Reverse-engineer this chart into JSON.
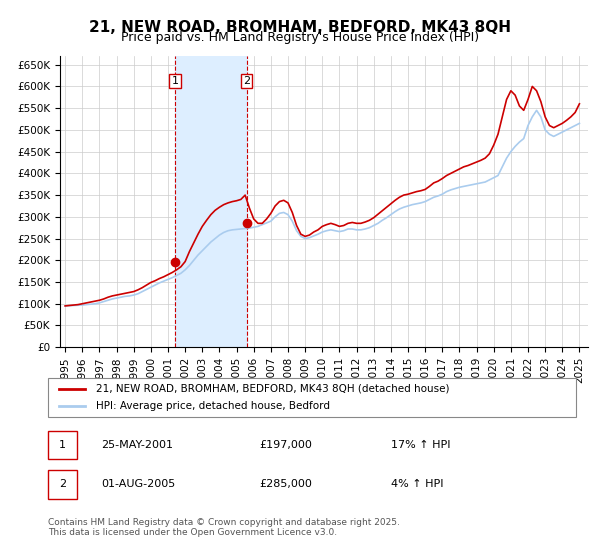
{
  "title": "21, NEW ROAD, BROMHAM, BEDFORD, MK43 8QH",
  "subtitle": "Price paid vs. HM Land Registry's House Price Index (HPI)",
  "title_fontsize": 11,
  "subtitle_fontsize": 9,
  "ylim": [
    0,
    670000
  ],
  "yticks": [
    0,
    50000,
    100000,
    150000,
    200000,
    250000,
    300000,
    350000,
    400000,
    450000,
    500000,
    550000,
    600000,
    650000
  ],
  "ytick_labels": [
    "£0",
    "£50K",
    "£100K",
    "£150K",
    "£200K",
    "£250K",
    "£300K",
    "£350K",
    "£400K",
    "£450K",
    "£500K",
    "£550K",
    "£600K",
    "£650K"
  ],
  "xlim_start": 1995.0,
  "xlim_end": 2025.5,
  "xtick_years": [
    1995,
    1996,
    1997,
    1998,
    1999,
    2000,
    2001,
    2002,
    2003,
    2004,
    2005,
    2006,
    2007,
    2008,
    2009,
    2010,
    2011,
    2012,
    2013,
    2014,
    2015,
    2016,
    2017,
    2018,
    2019,
    2020,
    2021,
    2022,
    2023,
    2024,
    2025
  ],
  "line1_color": "#cc0000",
  "line2_color": "#aaccee",
  "shade_color": "#ddeeff",
  "grid_color": "#cccccc",
  "background_color": "#ffffff",
  "marker1_x": 2001.4,
  "marker1_y": 197000,
  "marker2_x": 2005.58,
  "marker2_y": 285000,
  "vline1_x": 2001.4,
  "vline2_x": 2005.58,
  "shade_x1": 2001.4,
  "shade_x2": 2005.58,
  "legend_label1": "21, NEW ROAD, BROMHAM, BEDFORD, MK43 8QH (detached house)",
  "legend_label2": "HPI: Average price, detached house, Bedford",
  "table_rows": [
    {
      "num": "1",
      "date": "25-MAY-2001",
      "price": "£197,000",
      "hpi": "17% ↑ HPI"
    },
    {
      "num": "2",
      "date": "01-AUG-2005",
      "price": "£285,000",
      "hpi": "4% ↑ HPI"
    }
  ],
  "footer": "Contains HM Land Registry data © Crown copyright and database right 2025.\nThis data is licensed under the Open Government Licence v3.0.",
  "hpi_series": {
    "years": [
      1995.0,
      1995.25,
      1995.5,
      1995.75,
      1996.0,
      1996.25,
      1996.5,
      1996.75,
      1997.0,
      1997.25,
      1997.5,
      1997.75,
      1998.0,
      1998.25,
      1998.5,
      1998.75,
      1999.0,
      1999.25,
      1999.5,
      1999.75,
      2000.0,
      2000.25,
      2000.5,
      2000.75,
      2001.0,
      2001.25,
      2001.5,
      2001.75,
      2002.0,
      2002.25,
      2002.5,
      2002.75,
      2003.0,
      2003.25,
      2003.5,
      2003.75,
      2004.0,
      2004.25,
      2004.5,
      2004.75,
      2005.0,
      2005.25,
      2005.5,
      2005.75,
      2006.0,
      2006.25,
      2006.5,
      2006.75,
      2007.0,
      2007.25,
      2007.5,
      2007.75,
      2008.0,
      2008.25,
      2008.5,
      2008.75,
      2009.0,
      2009.25,
      2009.5,
      2009.75,
      2010.0,
      2010.25,
      2010.5,
      2010.75,
      2011.0,
      2011.25,
      2011.5,
      2011.75,
      2012.0,
      2012.25,
      2012.5,
      2012.75,
      2013.0,
      2013.25,
      2013.5,
      2013.75,
      2014.0,
      2014.25,
      2014.5,
      2014.75,
      2015.0,
      2015.25,
      2015.5,
      2015.75,
      2016.0,
      2016.25,
      2016.5,
      2016.75,
      2017.0,
      2017.25,
      2017.5,
      2017.75,
      2018.0,
      2018.25,
      2018.5,
      2018.75,
      2019.0,
      2019.25,
      2019.5,
      2019.75,
      2020.0,
      2020.25,
      2020.5,
      2020.75,
      2021.0,
      2021.25,
      2021.5,
      2021.75,
      2022.0,
      2022.25,
      2022.5,
      2022.75,
      2023.0,
      2023.25,
      2023.5,
      2023.75,
      2024.0,
      2024.25,
      2024.5,
      2024.75,
      2025.0
    ],
    "values": [
      95000,
      95500,
      96000,
      96500,
      97000,
      98000,
      99000,
      100000,
      102000,
      105000,
      108000,
      111000,
      113000,
      115000,
      117000,
      118000,
      120000,
      123000,
      128000,
      133000,
      138000,
      143000,
      148000,
      152000,
      156000,
      160000,
      165000,
      170000,
      178000,
      188000,
      200000,
      212000,
      222000,
      232000,
      242000,
      250000,
      258000,
      264000,
      268000,
      270000,
      271000,
      272000,
      273000,
      274000,
      276000,
      278000,
      282000,
      286000,
      290000,
      300000,
      308000,
      310000,
      305000,
      290000,
      268000,
      255000,
      250000,
      252000,
      256000,
      260000,
      265000,
      268000,
      270000,
      268000,
      266000,
      268000,
      272000,
      272000,
      270000,
      270000,
      272000,
      275000,
      280000,
      285000,
      292000,
      298000,
      305000,
      312000,
      318000,
      322000,
      325000,
      328000,
      330000,
      332000,
      335000,
      340000,
      345000,
      348000,
      352000,
      358000,
      362000,
      365000,
      368000,
      370000,
      372000,
      374000,
      376000,
      378000,
      380000,
      385000,
      390000,
      395000,
      415000,
      435000,
      450000,
      462000,
      472000,
      480000,
      510000,
      530000,
      545000,
      530000,
      500000,
      490000,
      485000,
      490000,
      495000,
      500000,
      505000,
      510000,
      515000
    ]
  },
  "price_series": {
    "years": [
      1995.0,
      1995.25,
      1995.5,
      1995.75,
      1996.0,
      1996.25,
      1996.5,
      1996.75,
      1997.0,
      1997.25,
      1997.5,
      1997.75,
      1998.0,
      1998.25,
      1998.5,
      1998.75,
      1999.0,
      1999.25,
      1999.5,
      1999.75,
      2000.0,
      2000.25,
      2000.5,
      2000.75,
      2001.0,
      2001.25,
      2001.5,
      2001.75,
      2002.0,
      2002.25,
      2002.5,
      2002.75,
      2003.0,
      2003.25,
      2003.5,
      2003.75,
      2004.0,
      2004.25,
      2004.5,
      2004.75,
      2005.0,
      2005.25,
      2005.5,
      2005.75,
      2006.0,
      2006.25,
      2006.5,
      2006.75,
      2007.0,
      2007.25,
      2007.5,
      2007.75,
      2008.0,
      2008.25,
      2008.5,
      2008.75,
      2009.0,
      2009.25,
      2009.5,
      2009.75,
      2010.0,
      2010.25,
      2010.5,
      2010.75,
      2011.0,
      2011.25,
      2011.5,
      2011.75,
      2012.0,
      2012.25,
      2012.5,
      2012.75,
      2013.0,
      2013.25,
      2013.5,
      2013.75,
      2014.0,
      2014.25,
      2014.5,
      2014.75,
      2015.0,
      2015.25,
      2015.5,
      2015.75,
      2016.0,
      2016.25,
      2016.5,
      2016.75,
      2017.0,
      2017.25,
      2017.5,
      2017.75,
      2018.0,
      2018.25,
      2018.5,
      2018.75,
      2019.0,
      2019.25,
      2019.5,
      2019.75,
      2020.0,
      2020.25,
      2020.5,
      2020.75,
      2021.0,
      2021.25,
      2021.5,
      2021.75,
      2022.0,
      2022.25,
      2022.5,
      2022.75,
      2023.0,
      2023.25,
      2023.5,
      2023.75,
      2024.0,
      2024.25,
      2024.5,
      2024.75,
      2025.0
    ],
    "values": [
      95000,
      96000,
      97000,
      98000,
      100000,
      102000,
      104000,
      106000,
      108000,
      111000,
      115000,
      118000,
      120000,
      122000,
      124000,
      126000,
      128000,
      132000,
      137000,
      143000,
      149000,
      153000,
      158000,
      162000,
      167000,
      172000,
      178000,
      185000,
      197000,
      220000,
      240000,
      260000,
      278000,
      292000,
      305000,
      315000,
      322000,
      328000,
      332000,
      335000,
      337000,
      340000,
      350000,
      320000,
      295000,
      285000,
      285000,
      295000,
      308000,
      325000,
      335000,
      338000,
      332000,
      310000,
      280000,
      260000,
      255000,
      258000,
      265000,
      270000,
      278000,
      282000,
      285000,
      282000,
      278000,
      280000,
      285000,
      287000,
      285000,
      285000,
      288000,
      292000,
      298000,
      306000,
      314000,
      322000,
      330000,
      338000,
      345000,
      350000,
      352000,
      355000,
      358000,
      360000,
      363000,
      370000,
      378000,
      382000,
      388000,
      395000,
      400000,
      405000,
      410000,
      415000,
      418000,
      422000,
      426000,
      430000,
      435000,
      445000,
      465000,
      490000,
      530000,
      570000,
      590000,
      580000,
      555000,
      545000,
      570000,
      600000,
      590000,
      565000,
      530000,
      510000,
      505000,
      510000,
      515000,
      522000,
      530000,
      540000,
      560000
    ]
  }
}
